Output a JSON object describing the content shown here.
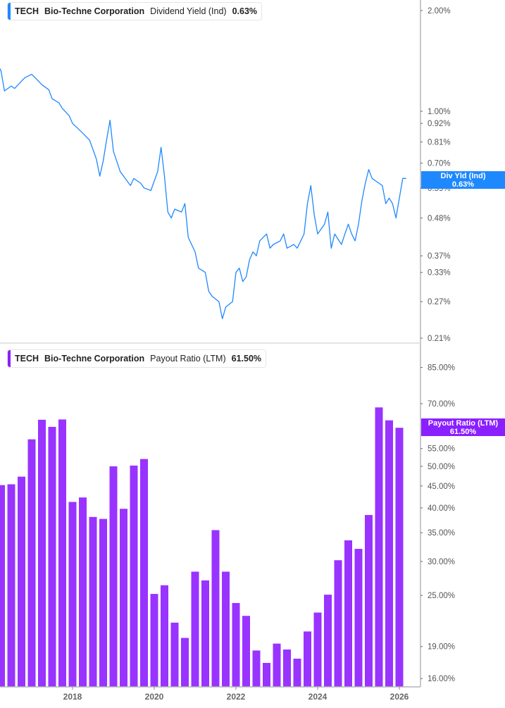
{
  "chart_data": [
    {
      "type": "line",
      "ticker": "TECH",
      "company": "Bio-Techne Corporation",
      "metric": "Dividend Yield (Ind)",
      "current_value": "0.63%",
      "tag_label": "Div Yld (Ind)",
      "tag_value": "0.63%",
      "color": "#1e88ff",
      "y_scale": "log",
      "ylim": [
        0.203,
        2.15
      ],
      "y_ticks": [
        "2.00%",
        "1.00%",
        "0.92%",
        "0.81%",
        "0.70%",
        "0.59%",
        "0.48%",
        "0.37%",
        "0.33%",
        "0.27%",
        "0.21%"
      ],
      "y_tick_values": [
        2.0,
        1.0,
        0.92,
        0.81,
        0.7,
        0.59,
        0.48,
        0.37,
        0.33,
        0.27,
        0.21
      ],
      "x": [
        "2016-03",
        "2016-04",
        "2016-05",
        "2016-07",
        "2016-08",
        "2016-10",
        "2016-11",
        "2017-01",
        "2017-03",
        "2017-04",
        "2017-06",
        "2017-07",
        "2017-09",
        "2017-10",
        "2017-12",
        "2018-01",
        "2018-03",
        "2018-04",
        "2018-06",
        "2018-08",
        "2018-09",
        "2018-10",
        "2018-11",
        "2018-12",
        "2019-01",
        "2019-03",
        "2019-04",
        "2019-06",
        "2019-07",
        "2019-09",
        "2019-10",
        "2019-12",
        "2020-02",
        "2020-03",
        "2020-04",
        "2020-05",
        "2020-06",
        "2020-07",
        "2020-09",
        "2020-10",
        "2020-11",
        "2021-01",
        "2021-02",
        "2021-04",
        "2021-05",
        "2021-06",
        "2021-08",
        "2021-09",
        "2021-10",
        "2021-12",
        "2022-01",
        "2022-02",
        "2022-03",
        "2022-04",
        "2022-05",
        "2022-06",
        "2022-07",
        "2022-08",
        "2022-10",
        "2022-11",
        "2022-12",
        "2023-02",
        "2023-03",
        "2023-04",
        "2023-06",
        "2023-07",
        "2023-09",
        "2023-10",
        "2023-11",
        "2023-12",
        "2024-01",
        "2024-03",
        "2024-04",
        "2024-05",
        "2024-06",
        "2024-08",
        "2024-09",
        "2024-10",
        "2024-11",
        "2024-12",
        "2025-01",
        "2025-02",
        "2025-03",
        "2025-04",
        "2025-05",
        "2025-07",
        "2025-08",
        "2025-09",
        "2025-10",
        "2025-11",
        "2025-12",
        "2026-01",
        "2026-02",
        "2026-03"
      ],
      "values": [
        1.38,
        1.32,
        1.15,
        1.19,
        1.17,
        1.23,
        1.26,
        1.29,
        1.23,
        1.2,
        1.16,
        1.09,
        1.06,
        1.02,
        0.97,
        0.92,
        0.88,
        0.86,
        0.82,
        0.72,
        0.64,
        0.71,
        0.82,
        0.94,
        0.76,
        0.66,
        0.64,
        0.6,
        0.63,
        0.61,
        0.59,
        0.58,
        0.66,
        0.78,
        0.64,
        0.5,
        0.48,
        0.51,
        0.5,
        0.53,
        0.42,
        0.38,
        0.34,
        0.33,
        0.29,
        0.28,
        0.27,
        0.24,
        0.26,
        0.27,
        0.33,
        0.34,
        0.31,
        0.32,
        0.36,
        0.38,
        0.37,
        0.41,
        0.43,
        0.39,
        0.4,
        0.41,
        0.43,
        0.39,
        0.4,
        0.39,
        0.43,
        0.53,
        0.6,
        0.49,
        0.43,
        0.46,
        0.5,
        0.39,
        0.43,
        0.4,
        0.43,
        0.46,
        0.43,
        0.41,
        0.46,
        0.54,
        0.61,
        0.67,
        0.63,
        0.61,
        0.6,
        0.53,
        0.55,
        0.53,
        0.48,
        0.55,
        0.63,
        0.63
      ]
    },
    {
      "type": "bar",
      "ticker": "TECH",
      "company": "Bio-Techne Corporation",
      "metric": "Payout Ratio (LTM)",
      "current_value": "61.50%",
      "tag_label": "Payout Ratio (LTM)",
      "tag_value": "61.50%",
      "color": "#9933ff",
      "y_scale": "log",
      "ylim": [
        15.3,
        96.9
      ],
      "y_ticks": [
        "85.00%",
        "70.00%",
        "55.00%",
        "50.00%",
        "45.00%",
        "40.00%",
        "35.00%",
        "30.00%",
        "25.00%",
        "19.00%",
        "16.00%"
      ],
      "y_tick_values": [
        85,
        70,
        55,
        50,
        45,
        40,
        35,
        30,
        25,
        19,
        16
      ],
      "x": [
        "2016-04",
        "2016-07",
        "2016-10",
        "2017-01",
        "2017-04",
        "2017-07",
        "2017-10",
        "2018-01",
        "2018-04",
        "2018-07",
        "2018-10",
        "2019-01",
        "2019-04",
        "2019-07",
        "2019-10",
        "2020-01",
        "2020-04",
        "2020-07",
        "2020-10",
        "2021-01",
        "2021-04",
        "2021-07",
        "2021-10",
        "2022-01",
        "2022-04",
        "2022-07",
        "2022-10",
        "2023-01",
        "2023-04",
        "2023-07",
        "2023-10",
        "2024-01",
        "2024-04",
        "2024-07",
        "2024-10",
        "2025-01",
        "2025-04",
        "2025-07",
        "2025-10",
        "2026-01"
      ],
      "values": [
        45.2,
        45.4,
        47.3,
        57.8,
        64.2,
        61.8,
        64.3,
        41.3,
        42.3,
        38.1,
        37.7,
        50.0,
        39.8,
        50.2,
        52.0,
        25.2,
        26.4,
        21.6,
        19.9,
        28.4,
        27.1,
        35.5,
        28.4,
        24.0,
        22.4,
        18.6,
        17.4,
        19.3,
        18.7,
        17.8,
        20.6,
        22.8,
        25.1,
        30.2,
        33.6,
        32.1,
        38.5,
        68.6,
        64.0,
        61.5
      ]
    }
  ],
  "x_axis": {
    "tick_labels": [
      "2018",
      "2020",
      "2022",
      "2024",
      "2026"
    ],
    "tick_values": [
      2018,
      2020,
      2022,
      2024,
      2026
    ]
  }
}
